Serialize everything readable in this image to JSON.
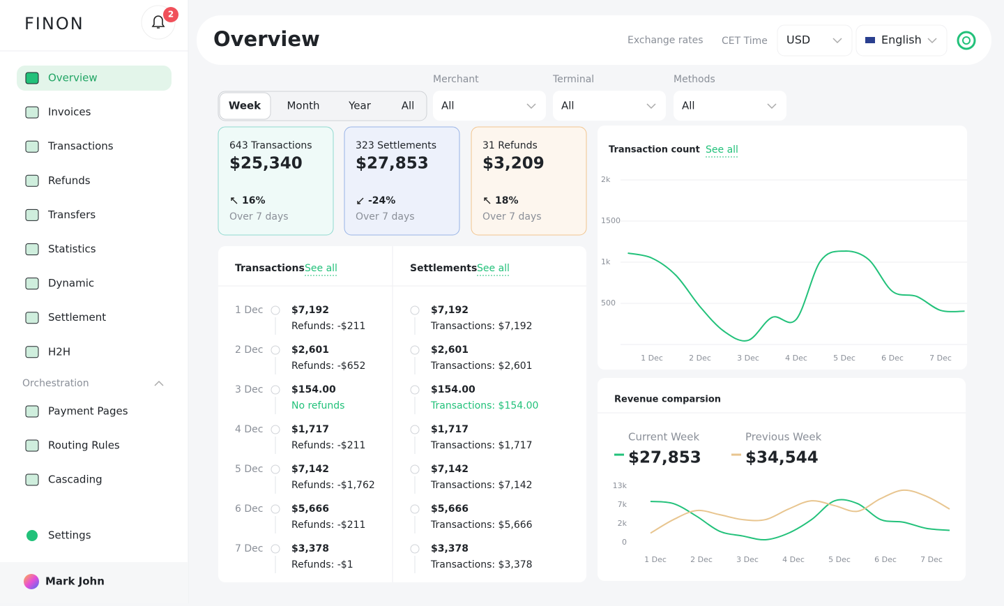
{
  "sidebar": {
    "logo": "FINON",
    "notifications": 2,
    "nav": [
      "Overview",
      "Invoices",
      "Transactions",
      "Refunds",
      "Transfers",
      "Statistics",
      "Dynamic",
      "Settlement",
      "H2H"
    ],
    "active": 0,
    "section": "Orchestration",
    "orchestration": [
      "Payment Pages",
      "Routing Rules",
      "Cascading"
    ],
    "settings": "Settings",
    "user": "Mark John"
  },
  "header": {
    "title": "Overview",
    "links": [
      "Exchange rates",
      "CET Time"
    ],
    "currency": "USD",
    "language": "English"
  },
  "periods": {
    "options": [
      "Week",
      "Month",
      "Year",
      "All"
    ],
    "selected": 0
  },
  "filters": [
    {
      "label": "Merchant",
      "value": "All"
    },
    {
      "label": "Terminal",
      "value": "All"
    },
    {
      "label": "Methods",
      "value": "All"
    }
  ],
  "cards": [
    {
      "count": "643 Transactions",
      "amount": "$25,340",
      "change": "16%",
      "trend": "up",
      "period": "Over 7 days",
      "color": "#8fd9cf",
      "background": "#effaf8"
    },
    {
      "count": "323 Settlements",
      "amount": "$27,853",
      "change": "-24%",
      "trend": "down",
      "period": "Over 7 days",
      "color": "#98b3e6",
      "background": "#edf1fb"
    },
    {
      "count": "31 Refunds",
      "amount": "$3,209",
      "change": "18%",
      "trend": "up",
      "period": "Over 7 days",
      "color": "#f1c48e",
      "background": "#fdf6ee"
    }
  ],
  "transactions": {
    "title": "Transactions",
    "link": "See all",
    "rows": [
      {
        "date": "1 Dec",
        "amount": "$7,192",
        "note": "Refunds: -$211"
      },
      {
        "date": "2 Dec",
        "amount": "$2,601",
        "note": "Refunds: -$652"
      },
      {
        "date": "3 Dec",
        "amount": "$154.00",
        "note": "No refunds",
        "note_color": "#22c17a"
      },
      {
        "date": "4 Dec",
        "amount": "$1,717",
        "note": "Refunds: -$211"
      },
      {
        "date": "5 Dec",
        "amount": "$7,142",
        "note": "Refunds: -$1,762"
      },
      {
        "date": "6 Dec",
        "amount": "$5,666",
        "note": "Refunds: -$211"
      },
      {
        "date": "7 Dec",
        "amount": "$3,378",
        "note": "Refunds: -$1"
      }
    ]
  },
  "settlements": {
    "title": "Settlements",
    "link": "See all",
    "rows": [
      {
        "amount": "$7,192",
        "note": "Transactions: $7,192"
      },
      {
        "amount": "$2,601",
        "note": "Transactions: $2,601"
      },
      {
        "amount": "$154.00",
        "note": "Transactions: $154.00",
        "note_color": "#22c17a"
      },
      {
        "amount": "$1,717",
        "note": "Transactions: $1,717"
      },
      {
        "amount": "$7,142",
        "note": "Transactions: $7,142"
      },
      {
        "amount": "$5,666",
        "note": "Transactions: $5,666"
      },
      {
        "amount": "$3,378",
        "note": "Transactions: $3,378"
      }
    ]
  },
  "chart_data": [
    {
      "type": "line",
      "title": "Transaction count",
      "link": "See all",
      "categories": [
        null,
        "1 Dec",
        null,
        "2 Dec",
        null,
        "3 Dec",
        null,
        "4 Dec",
        null,
        "5 Dec",
        null,
        "6 Dec",
        null,
        "7 Dec",
        null
      ],
      "series": [
        {
          "color": "#22c17a",
          "values": [
            1110,
            1050,
            840,
            460,
            160,
            50,
            330,
            305,
            1010,
            1135,
            1035,
            645,
            585,
            415,
            405
          ]
        }
      ],
      "ylim": [
        0,
        2000
      ],
      "yticks": [
        {
          "value": 2000,
          "label": "2k"
        },
        1500,
        {
          "value": 1000,
          "label": "1k"
        },
        500
      ],
      "grid": true
    },
    {
      "type": "line",
      "title": "Revenue comparsion",
      "categories": [
        "1 Dec",
        null,
        "2 Dec",
        null,
        "3 Dec",
        null,
        "4 Dec",
        null,
        "5 Dec",
        null,
        "6 Dec",
        null,
        "7 Dec",
        null
      ],
      "series": [
        {
          "name": "Current Week",
          "total": "$27,853",
          "color": "#22c17a",
          "values": [
            8100,
            7400,
            4000,
            1200,
            700,
            300,
            1000,
            3100,
            8300,
            7400,
            3100,
            2400,
            1500,
            1300
          ]
        },
        {
          "name": "Previous Week",
          "total": "$34,544",
          "color": "#e8c58f",
          "values": [
            1000,
            3100,
            5500,
            4400,
            3100,
            3100,
            5900,
            8300,
            6800,
            5300,
            9000,
            11700,
            9700,
            5900
          ]
        }
      ],
      "ylim": [
        0,
        13000
      ],
      "yticks": [
        {
          "value": 13000,
          "label": "13k"
        },
        {
          "value": 7000,
          "label": "7k"
        },
        {
          "value": 2000,
          "label": "2k"
        },
        0
      ]
    }
  ]
}
